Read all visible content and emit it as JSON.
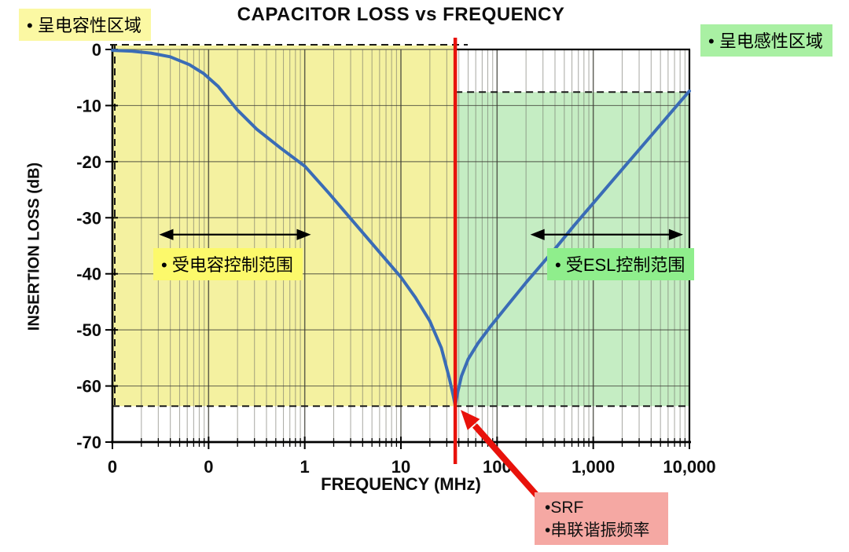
{
  "title": "CAPACITOR LOSS vs FREQUENCY",
  "labels": {
    "capacitive_region": "• 呈电容性区域",
    "inductive_region": "• 呈电感性区域",
    "cap_controlled_range": "• 受电容控制范围",
    "esl_controlled_range": "• 受ESL控制范围",
    "srf_line1": "•SRF",
    "srf_line2": "•串联谐振频率"
  },
  "colors": {
    "curve_blue": "#3a6cb6",
    "red": "#e8120b",
    "yellow_region": "#f4f1a0",
    "yellow_highlight": "#fcf96b",
    "yellow_label_bg": "#fbf8a3",
    "green_region": "#c5edc3",
    "green_highlight": "#8fee8c",
    "green_label_bg": "#a9f0a3",
    "pink_box": "#f5a8a3",
    "grid_minor": "#6e6e66",
    "grid_major": "#3c3c34",
    "dash_black": "#1a1a1a",
    "axis_black": "#000000"
  },
  "chart_data": {
    "type": "line",
    "title": "CAPACITOR LOSS vs FREQUENCY",
    "xlabel": "FREQUENCY (MHz)",
    "ylabel": "INSERTION LOSS (dB)",
    "x_scale": "log-decades",
    "decades": 6,
    "x_tick_labels": [
      "0",
      "0",
      "1",
      "10",
      "100",
      "1,000",
      "10,000"
    ],
    "y_ticks_db": [
      0,
      -10,
      -20,
      -30,
      -40,
      -50,
      -60,
      -70
    ],
    "y_tick_labels": [
      "0",
      "-10",
      "-20",
      "-30",
      "-40",
      "-50",
      "-60",
      "-70"
    ],
    "ylim": [
      -70,
      0
    ],
    "grid": true,
    "legend": "none",
    "srf": {
      "u": 3.565,
      "min_db": -63.5
    },
    "regions": [
      {
        "name": "capacitive",
        "u_from": 0,
        "u_to": 3.565,
        "db_top": 0,
        "db_bottom": -63.6,
        "color": "#f4f1a0"
      },
      {
        "name": "inductive",
        "u_from": 3.565,
        "u_to": 6,
        "db_top": -7.6,
        "db_bottom": -63.6,
        "color": "#c5edc3"
      }
    ],
    "dashed_level_db": -63.6,
    "range_arrows": [
      {
        "u_from": 0.51,
        "u_to": 2.04,
        "db": -33
      },
      {
        "u_from": 4.37,
        "u_to": 5.91,
        "db": -33
      }
    ],
    "series": [
      {
        "name": "insertion_loss",
        "points_u_db": [
          [
            0,
            -0.15
          ],
          [
            0.2,
            -0.3
          ],
          [
            0.4,
            -0.65
          ],
          [
            0.6,
            -1.3
          ],
          [
            0.8,
            -2.7
          ],
          [
            0.95,
            -4.3
          ],
          [
            1.1,
            -6.6
          ],
          [
            1.3,
            -10.8
          ],
          [
            1.5,
            -14.2
          ],
          [
            1.75,
            -17.6
          ],
          [
            2.0,
            -20.8
          ],
          [
            2.25,
            -25.6
          ],
          [
            2.5,
            -30.6
          ],
          [
            2.75,
            -35.6
          ],
          [
            3.0,
            -40.6
          ],
          [
            3.15,
            -44.2
          ],
          [
            3.3,
            -48.4
          ],
          [
            3.42,
            -53.2
          ],
          [
            3.5,
            -58.4
          ],
          [
            3.545,
            -61.8
          ],
          [
            3.565,
            -63.5
          ],
          [
            3.585,
            -61.5
          ],
          [
            3.63,
            -58.2
          ],
          [
            3.7,
            -55.2
          ],
          [
            3.8,
            -52.4
          ],
          [
            3.93,
            -49.4
          ],
          [
            4.1,
            -45.8
          ],
          [
            4.3,
            -41.6
          ],
          [
            4.6,
            -35.6
          ],
          [
            4.8,
            -31.4
          ],
          [
            5.0,
            -27.4
          ],
          [
            5.2,
            -23.4
          ],
          [
            5.4,
            -19.4
          ],
          [
            5.6,
            -15.4
          ],
          [
            5.8,
            -11.4
          ],
          [
            6.0,
            -7.4
          ]
        ]
      }
    ]
  }
}
